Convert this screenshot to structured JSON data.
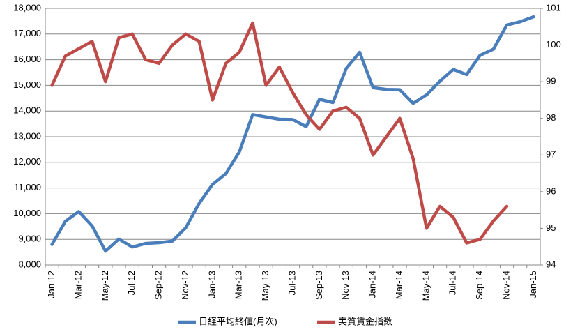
{
  "chart_data": {
    "type": "line",
    "categories": [
      "Jan-12",
      null,
      "Mar-12",
      null,
      "May-12",
      null,
      "Jul-12",
      null,
      "Sep-12",
      null,
      "Nov-12",
      null,
      "Jan-13",
      null,
      "Mar-13",
      null,
      "May-13",
      null,
      "Jul-13",
      null,
      "Sep-13",
      null,
      "Nov-13",
      null,
      "Jan-14",
      null,
      "Mar-14",
      null,
      "May-14",
      null,
      "Jul-14",
      null,
      "Sep-14",
      null,
      "Nov-14",
      null,
      "Jan-15"
    ],
    "series": [
      {
        "name": "日経平均終値(月次)",
        "color": "#4a7ebb",
        "values": [
          8800,
          9700,
          10080,
          9520,
          8540,
          9010,
          8700,
          8840,
          8870,
          8930,
          9450,
          10400,
          11140,
          11560,
          12400,
          13860,
          13770,
          13680,
          13670,
          13390,
          14460,
          14330,
          15660,
          16290,
          14910,
          14840,
          14830,
          14300,
          14630,
          15160,
          15620,
          15420,
          16170,
          16410,
          17350,
          17480,
          17670
        ]
      },
      {
        "name": "実質賃金指数",
        "color": "#be4b48",
        "axis": "y2",
        "values": [
          98.9,
          99.7,
          99.9,
          100.1,
          99.0,
          100.2,
          100.3,
          99.6,
          99.5,
          100.0,
          100.3,
          100.1,
          98.5,
          99.5,
          99.8,
          100.6,
          98.9,
          99.4,
          98.7,
          98.1,
          97.7,
          98.2,
          98.3,
          98.0,
          97.0,
          97.5,
          98.0,
          96.9,
          95.0,
          95.6,
          95.3,
          94.6,
          94.7,
          95.2,
          95.6,
          null,
          null
        ]
      }
    ],
    "ylim": [
      8000,
      18000
    ],
    "yticks": [
      {
        "value": 8000,
        "label": "8,000"
      },
      {
        "value": 9000,
        "label": "9,000"
      },
      {
        "value": 10000,
        "label": "10,000"
      },
      {
        "value": 11000,
        "label": "11,000"
      },
      {
        "value": 12000,
        "label": "12,000"
      },
      {
        "value": 13000,
        "label": "13,000"
      },
      {
        "value": 14000,
        "label": "14,000"
      },
      {
        "value": 15000,
        "label": "15,000"
      },
      {
        "value": 16000,
        "label": "16,000"
      },
      {
        "value": 17000,
        "label": "17,000"
      },
      {
        "value": 18000,
        "label": "18,000"
      }
    ],
    "y2lim": [
      94,
      101
    ],
    "y2ticks": [
      94,
      95,
      96,
      97,
      98,
      99,
      100,
      101
    ],
    "grid": true,
    "legend": "bottom"
  }
}
